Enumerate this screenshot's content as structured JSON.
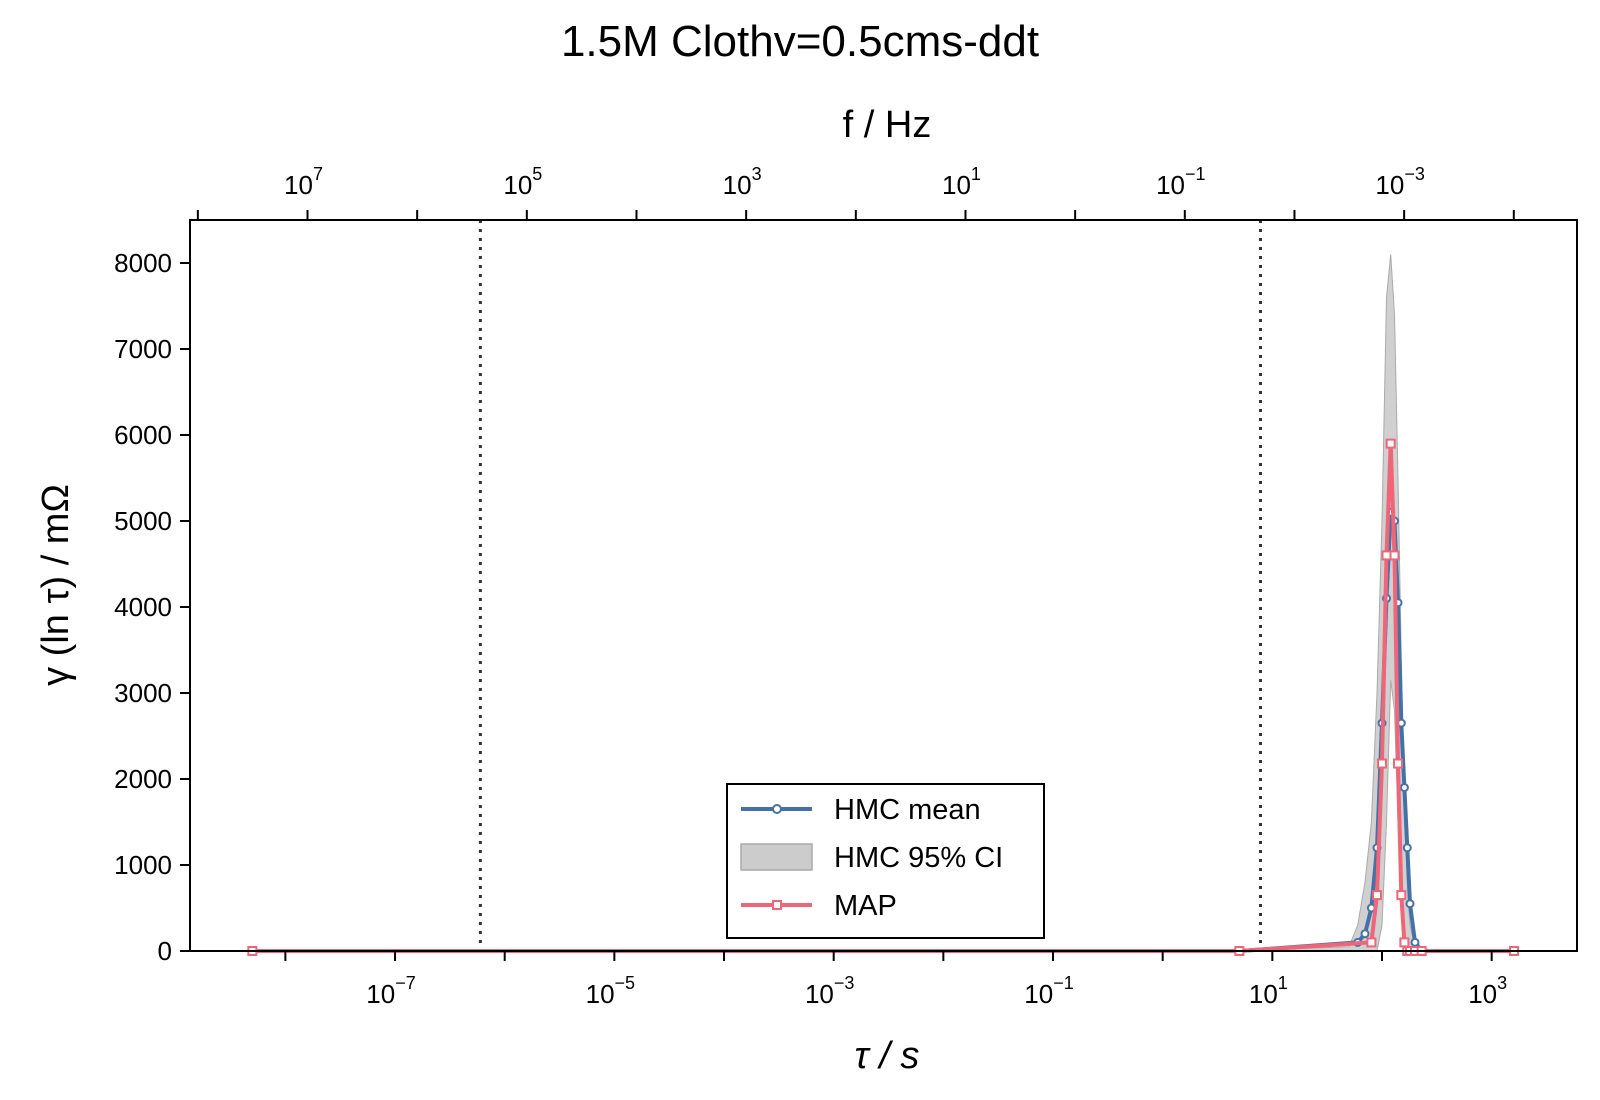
{
  "chart_data": {
    "type": "line",
    "title": "1.5M Clothv=0.5cms-ddt",
    "xlabel": "τ / s",
    "ylabel": "γ (ln τ) / mΩ",
    "top_xlabel": "f / Hz",
    "x_scale": "log",
    "xlim": [
      1.35e-09,
      6000
    ],
    "ylim": [
      0,
      8500
    ],
    "yticks": [
      0,
      1000,
      2000,
      3000,
      4000,
      5000,
      6000,
      7000,
      8000
    ],
    "xticks": [
      {
        "base": "10",
        "exp": "−7",
        "value": 1e-07
      },
      {
        "base": "10",
        "exp": "−5",
        "value": 1e-05
      },
      {
        "base": "10",
        "exp": "−3",
        "value": 0.001
      },
      {
        "base": "10",
        "exp": "−1",
        "value": 0.1
      },
      {
        "base": "10",
        "exp": "1",
        "value": 10
      },
      {
        "base": "10",
        "exp": "3",
        "value": 1000
      }
    ],
    "top_xticks": [
      {
        "base": "10",
        "exp": "7",
        "value": 10000000.0
      },
      {
        "base": "10",
        "exp": "5",
        "value": 100000.0
      },
      {
        "base": "10",
        "exp": "3",
        "value": 1000.0
      },
      {
        "base": "10",
        "exp": "1",
        "value": 10
      },
      {
        "base": "10",
        "exp": "−1",
        "value": 0.1
      },
      {
        "base": "10",
        "exp": "−3",
        "value": 0.001
      }
    ],
    "vlines_tau": [
      6e-07,
      7.8
    ],
    "legend_position": "lower center",
    "series": [
      {
        "name": "HMC mean",
        "color": "#4472a8",
        "marker": "circle",
        "x": [
          5e-09,
          5.0,
          60,
          70,
          80,
          90,
          100,
          110,
          120,
          130,
          140,
          150,
          160,
          170,
          180,
          200,
          230,
          1600
        ],
        "y": [
          0,
          0,
          100,
          200,
          500,
          1200,
          2650,
          4100,
          5100,
          5000,
          4050,
          2650,
          1900,
          1200,
          550,
          100,
          0,
          0
        ]
      },
      {
        "name": "MAP",
        "color": "#ee6677",
        "marker": "square",
        "x": [
          5e-09,
          5.0,
          80,
          90,
          100,
          110,
          120,
          130,
          140,
          150,
          160,
          170,
          180,
          200,
          230,
          1600
        ],
        "y": [
          0,
          0,
          100,
          650,
          2180,
          4600,
          5900,
          4600,
          2180,
          650,
          100,
          0,
          0,
          0,
          0,
          0
        ]
      }
    ],
    "ci_band": {
      "name": "HMC 95% CI",
      "color": "#bbbbbb",
      "x": [
        5.0,
        50,
        60,
        70,
        80,
        90,
        100,
        110,
        120,
        130,
        140,
        150,
        160,
        170,
        180,
        200,
        230,
        300
      ],
      "lower": [
        0,
        0,
        0,
        0,
        0,
        0,
        300,
        1500,
        3150,
        2800,
        1500,
        500,
        0,
        0,
        0,
        0,
        0,
        0
      ],
      "upper": [
        0,
        50,
        300,
        800,
        1500,
        3000,
        5000,
        7600,
        8100,
        7400,
        5500,
        3400,
        1800,
        800,
        300,
        50,
        0,
        0
      ]
    }
  }
}
